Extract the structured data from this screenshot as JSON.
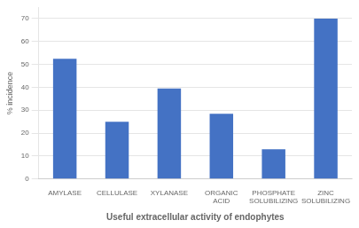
{
  "chart_data": {
    "type": "bar",
    "categories": [
      "AMYLASE",
      "CELLULASE",
      "XYLANASE",
      "ORGANIC\nACID",
      "PHOSPHATE\nSOLUBILIZING",
      "ZINC\nSOLUBILIZING"
    ],
    "values": [
      52.5,
      25,
      39.5,
      28.5,
      13,
      70
    ],
    "color": "#4472C4",
    "xlabel": "Useful extracellular activity of endophytes",
    "ylabel": "% incidence",
    "ylim": [
      0,
      75
    ],
    "yticks": [
      0,
      10,
      20,
      30,
      40,
      50,
      60,
      70
    ],
    "grid": true
  }
}
